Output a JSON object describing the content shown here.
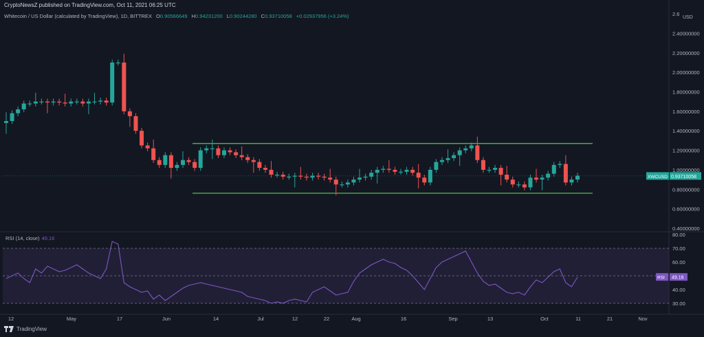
{
  "header": {
    "published": "CryptoNewsZ published on TradingView.com, Oct 11, 2021 06:25 UTC",
    "instrument": "Whitecoin / US Dollar (calculated by TradingView), 1D, BITTREX",
    "open_label": "O",
    "open": "0.90566649",
    "high_label": "H",
    "high": "0.94231200",
    "low_label": "L",
    "low": "0.90244280",
    "close_label": "C",
    "close": "0.93710058",
    "change": "+0.02937956 (+3.24%)"
  },
  "footer": {
    "brand": "TradingView"
  },
  "colors": {
    "background": "#131722",
    "up": "#26a69a",
    "down": "#ef5350",
    "channel": "#4caf50",
    "rsi_line": "#7e57c2",
    "rsi_band": "#3c2f5c",
    "grid": "#1e222d",
    "badge_price": "#26a69a",
    "badge_rsi": "#7e57c2"
  },
  "chart_data": [
    {
      "type": "candlestick",
      "title": "Whitecoin / US Dollar (calculated by TradingView), 1D, BITTREX",
      "y_axis": {
        "unit": "USD",
        "ticks": [
          "2.6",
          "2.40000000",
          "2.20000000",
          "2.00000000",
          "1.80000000",
          "1.60000000",
          "1.40000000",
          "1.20000000",
          "1.00000000",
          "0.80000000",
          "0.60000000",
          "0.40000000"
        ],
        "ylim": [
          0.4,
          2.6
        ]
      },
      "x_axis": {
        "ticks": [
          "12",
          "May",
          "17",
          "Jun",
          "14",
          "Jul",
          "12",
          "22",
          "Aug",
          "16",
          "Sep",
          "13",
          "Oct",
          "11",
          "21",
          "Nov"
        ]
      },
      "last_price": {
        "symbol": "XWCUSD",
        "value": "0.93710058",
        "y": 0.937
      },
      "channel": {
        "upper": 1.27,
        "lower": 0.76,
        "x_start": "Jun 9",
        "x_end": "Oct 26"
      },
      "series": {
        "base": [
          1.5,
          1.58,
          1.62,
          1.68,
          1.68,
          1.7,
          1.7,
          1.69,
          1.7,
          1.69,
          1.68,
          1.7,
          1.7,
          1.68,
          1.7,
          1.7,
          1.71,
          1.69,
          2.1,
          2.1,
          1.6,
          1.55,
          1.4,
          1.25,
          1.22,
          1.1,
          1.05,
          1.15,
          1.02,
          1.05,
          1.1,
          1.08,
          1.02,
          1.2,
          1.22,
          1.22,
          1.15,
          1.2,
          1.18,
          1.15,
          1.13,
          1.1,
          1.08,
          1.02,
          1.0,
          0.95,
          0.95,
          0.93,
          0.93,
          0.94,
          0.93,
          0.92,
          0.94,
          0.93,
          0.92,
          0.9,
          0.85,
          0.85,
          0.87,
          0.9,
          0.92,
          0.93,
          0.97,
          1.0,
          1.01,
          1.0,
          0.98,
          0.98,
          1.0,
          0.97,
          0.92,
          0.87,
          1.0,
          1.08,
          1.1,
          1.12,
          1.15,
          1.2,
          1.22,
          1.25,
          1.1,
          1.0,
          1.0,
          1.02,
          0.95,
          0.9,
          0.85,
          0.85,
          0.82,
          0.92,
          0.9,
          0.92,
          0.96,
          1.05,
          1.06,
          0.87,
          0.9,
          0.94
        ]
      }
    },
    {
      "type": "line",
      "title": "RSI (14, close)",
      "current_value": "49.16",
      "y_axis": {
        "ticks": [
          "80.00",
          "70.00",
          "60.00",
          "50.00",
          "40.00",
          "30.00"
        ],
        "ylim": [
          25,
          80
        ]
      },
      "bands": {
        "upper": 70,
        "mid": 50,
        "lower": 30
      },
      "values": [
        48,
        50,
        52,
        48,
        45,
        55,
        52,
        57,
        55,
        53,
        54,
        56,
        58,
        55,
        52,
        50,
        48,
        55,
        75,
        73,
        45,
        42,
        40,
        38,
        39,
        33,
        36,
        32,
        35,
        38,
        41,
        43,
        44,
        45,
        44,
        43,
        42,
        41,
        40,
        39,
        38,
        35,
        34,
        33,
        32,
        30,
        31,
        30,
        32,
        33,
        32,
        31,
        38,
        40,
        42,
        39,
        36,
        37,
        38,
        46,
        52,
        55,
        58,
        60,
        62,
        60,
        59,
        56,
        54,
        50,
        45,
        40,
        48,
        56,
        60,
        62,
        64,
        66,
        68,
        60,
        52,
        46,
        43,
        44,
        41,
        38,
        37,
        38,
        36,
        42,
        47,
        45,
        49,
        53,
        55,
        45,
        42,
        49
      ]
    }
  ]
}
